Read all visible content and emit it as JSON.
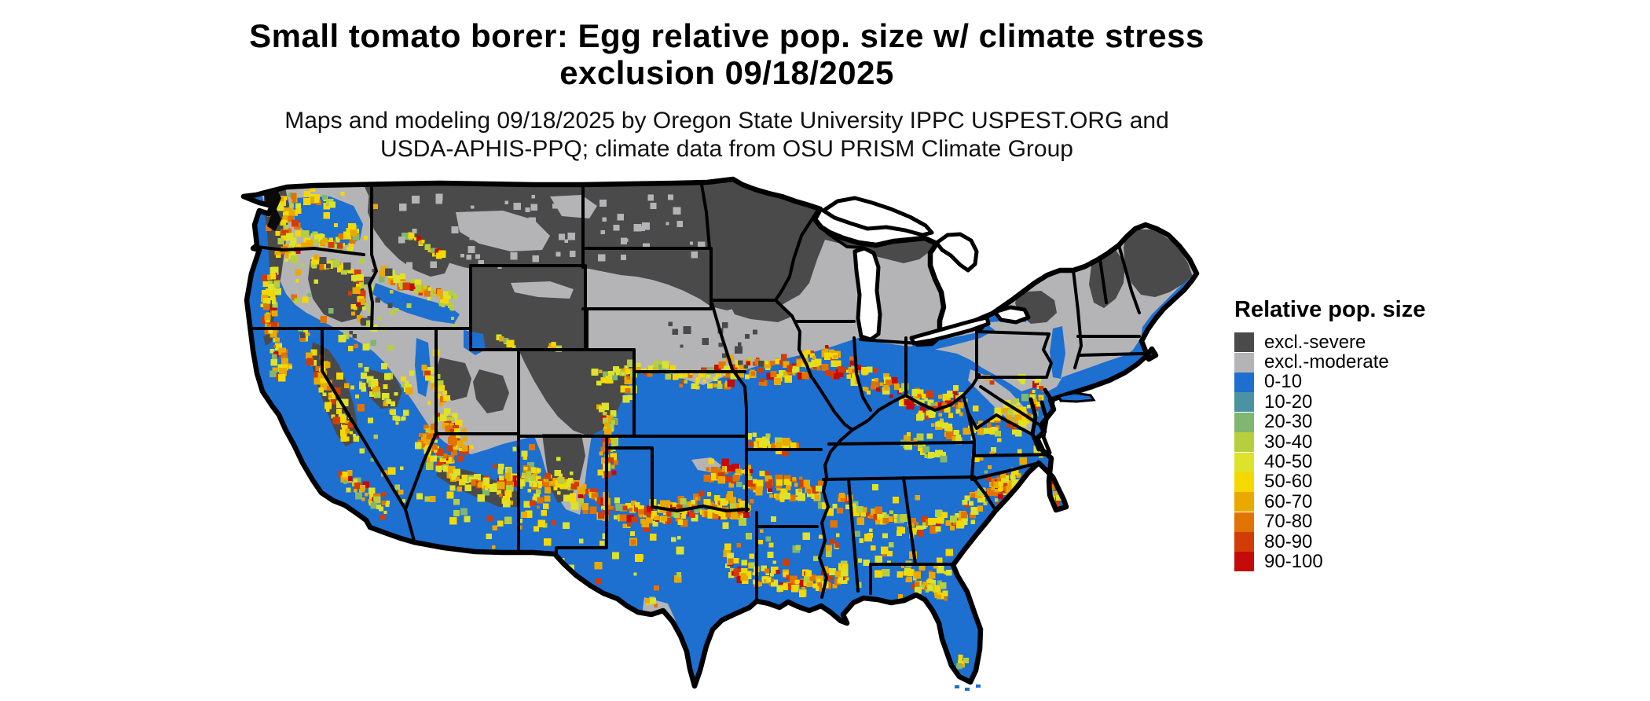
{
  "title": {
    "line1": "Small tomato borer: Egg relative pop. size w/ climate stress",
    "line2": "exclusion 09/18/2025"
  },
  "subtitle": {
    "line1": "Maps and modeling 09/18/2025 by Oregon State University IPPC USPEST.ORG and",
    "line2": "USDA-APHIS-PPQ; climate data from OSU PRISM Climate Group"
  },
  "legend": {
    "title": "Relative pop. size",
    "items": [
      {
        "key": "excl_severe",
        "label": "excl.-severe",
        "color": "#4a4a4a"
      },
      {
        "key": "excl_moderate",
        "label": "excl.-moderate",
        "color": "#b4b4b6"
      },
      {
        "key": "b0_10",
        "label": "0-10",
        "color": "#1d6fd0"
      },
      {
        "key": "b10_20",
        "label": "10-20",
        "color": "#4b93a2"
      },
      {
        "key": "b20_30",
        "label": "20-30",
        "color": "#80b671"
      },
      {
        "key": "b30_40",
        "label": "30-40",
        "color": "#b7cf3e"
      },
      {
        "key": "b40_50",
        "label": "40-50",
        "color": "#dde22b"
      },
      {
        "key": "b50_60",
        "label": "50-60",
        "color": "#f5d800"
      },
      {
        "key": "b60_70",
        "label": "60-70",
        "color": "#eaa900"
      },
      {
        "key": "b70_80",
        "label": "70-80",
        "color": "#e17400"
      },
      {
        "key": "b80_90",
        "label": "80-90",
        "color": "#d23c07"
      },
      {
        "key": "b90_100",
        "label": "90-100",
        "color": "#c50a0a"
      }
    ]
  },
  "map": {
    "region": "Contiguous United States",
    "border_color": "#000000",
    "water_color": "#ffffff",
    "background_color": "#ffffff"
  }
}
